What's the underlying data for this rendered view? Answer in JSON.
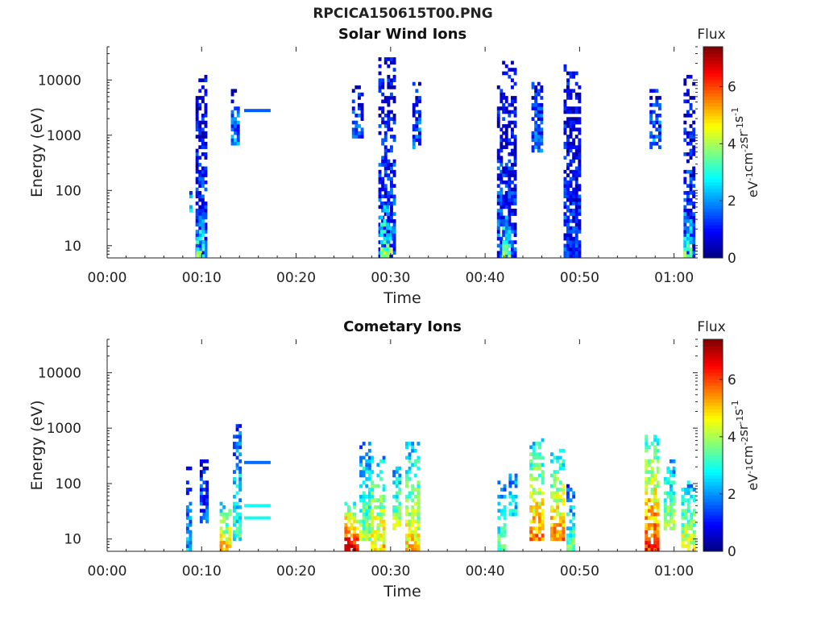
{
  "figure": {
    "title": "RPCICA150615T00.PNG"
  },
  "chart_data": [
    {
      "type": "heatmap",
      "title": "Solar Wind Ions",
      "xlabel": "Time",
      "ylabel": "Energy (eV)",
      "y_scale": "log",
      "ylim": [
        6,
        40000
      ],
      "xlim_minutes": [
        0,
        62.5
      ],
      "x_ticks": [
        "00:00",
        "00:10",
        "00:20",
        "00:30",
        "00:40",
        "00:50",
        "01:00"
      ],
      "y_ticks": [
        "10",
        "100",
        "1000",
        "10000"
      ],
      "colorbar": {
        "title": "Flux",
        "label": "eV^-1 cm^-2 sr^-1 s^-1",
        "range": [
          0,
          7.4
        ],
        "ticks": [
          "0",
          "2",
          "4",
          "6"
        ],
        "colormap": "jet"
      },
      "grid": false,
      "bursts": [
        {
          "t": 8.8,
          "w": 0.2,
          "lo": 40,
          "hi": 100,
          "flux": 3.0
        },
        {
          "t": 10.0,
          "w": 1.3,
          "lo": 6,
          "hi": 13000,
          "flux": 1.2
        },
        {
          "t": 9.9,
          "w": 1.0,
          "lo": 6,
          "hi": 50,
          "flux": 3.2
        },
        {
          "t": 13.5,
          "w": 0.8,
          "lo": 700,
          "hi": 6500,
          "flux": 1.8
        },
        {
          "t": 26.5,
          "w": 1.2,
          "lo": 900,
          "hi": 8000,
          "flux": 1.5
        },
        {
          "t": 29.6,
          "w": 1.8,
          "lo": 6,
          "hi": 25000,
          "flux": 1.3
        },
        {
          "t": 29.5,
          "w": 1.2,
          "lo": 6,
          "hi": 60,
          "flux": 3.5
        },
        {
          "t": 32.8,
          "w": 1.0,
          "lo": 600,
          "hi": 9000,
          "flux": 1.6
        },
        {
          "t": 41.5,
          "w": 0.5,
          "lo": 6,
          "hi": 8000,
          "flux": 1.4
        },
        {
          "t": 42.5,
          "w": 1.4,
          "lo": 6,
          "hi": 25000,
          "flux": 1.1
        },
        {
          "t": 42.3,
          "w": 1.0,
          "lo": 6,
          "hi": 40,
          "flux": 3.4
        },
        {
          "t": 45.5,
          "w": 1.2,
          "lo": 500,
          "hi": 9000,
          "flux": 1.6
        },
        {
          "t": 48.6,
          "w": 0.6,
          "lo": 6,
          "hi": 20000,
          "flux": 1.3
        },
        {
          "t": 49.3,
          "w": 1.4,
          "lo": 6,
          "hi": 15000,
          "flux": 1.0
        },
        {
          "t": 58.0,
          "w": 1.2,
          "lo": 600,
          "hi": 7000,
          "flux": 1.7
        },
        {
          "t": 61.6,
          "w": 1.2,
          "lo": 6,
          "hi": 12000,
          "flux": 1.2
        },
        {
          "t": 61.4,
          "w": 0.8,
          "lo": 6,
          "hi": 40,
          "flux": 3.2
        }
      ],
      "lines": [
        {
          "t0": 14.5,
          "t1": 17.3,
          "e": 2800,
          "flux": 1.6
        }
      ]
    },
    {
      "type": "heatmap",
      "title": "Cometary Ions",
      "xlabel": "Time",
      "ylabel": "Energy (eV)",
      "y_scale": "log",
      "ylim": [
        6,
        40000
      ],
      "xlim_minutes": [
        0,
        62.5
      ],
      "x_ticks": [
        "00:00",
        "00:10",
        "00:20",
        "00:30",
        "00:40",
        "00:50",
        "01:00"
      ],
      "y_ticks": [
        "10",
        "100",
        "1000",
        "10000"
      ],
      "colorbar": {
        "title": "Flux",
        "label": "eV^-1 cm^-2 sr^-1 s^-1",
        "range": [
          0,
          7.4
        ],
        "ticks": [
          "0",
          "2",
          "4",
          "6"
        ],
        "colormap": "jet"
      },
      "grid": false,
      "bursts": [
        {
          "t": 8.6,
          "w": 0.5,
          "lo": 6,
          "hi": 250,
          "flux": 2.0
        },
        {
          "t": 10.2,
          "w": 0.8,
          "lo": 20,
          "hi": 300,
          "flux": 1.5
        },
        {
          "t": 12.5,
          "w": 1.2,
          "lo": 6,
          "hi": 45,
          "flux": 4.8
        },
        {
          "t": 13.8,
          "w": 1.0,
          "lo": 10,
          "hi": 1300,
          "flux": 2.8
        },
        {
          "t": 25.8,
          "w": 1.4,
          "lo": 6,
          "hi": 45,
          "flux": 6.5
        },
        {
          "t": 27.3,
          "w": 1.2,
          "lo": 10,
          "hi": 600,
          "flux": 3.5
        },
        {
          "t": 28.6,
          "w": 1.4,
          "lo": 6,
          "hi": 300,
          "flux": 4.6
        },
        {
          "t": 30.7,
          "w": 1.0,
          "lo": 15,
          "hi": 200,
          "flux": 4.0
        },
        {
          "t": 32.3,
          "w": 1.5,
          "lo": 6,
          "hi": 650,
          "flux": 4.5
        },
        {
          "t": 41.8,
          "w": 1.0,
          "lo": 6,
          "hi": 120,
          "flux": 3.2
        },
        {
          "t": 43.0,
          "w": 1.0,
          "lo": 25,
          "hi": 200,
          "flux": 2.6
        },
        {
          "t": 45.4,
          "w": 1.4,
          "lo": 10,
          "hi": 700,
          "flux": 5.0
        },
        {
          "t": 47.6,
          "w": 1.4,
          "lo": 10,
          "hi": 450,
          "flux": 5.0
        },
        {
          "t": 49.0,
          "w": 0.8,
          "lo": 6,
          "hi": 100,
          "flux": 3.2
        },
        {
          "t": 57.7,
          "w": 1.6,
          "lo": 6,
          "hi": 800,
          "flux": 5.6
        },
        {
          "t": 59.5,
          "w": 1.2,
          "lo": 15,
          "hi": 300,
          "flux": 3.8
        },
        {
          "t": 61.5,
          "w": 1.5,
          "lo": 6,
          "hi": 120,
          "flux": 4.2
        }
      ],
      "lines": [
        {
          "t0": 14.5,
          "t1": 17.3,
          "e": 240,
          "flux": 1.7
        },
        {
          "t0": 14.5,
          "t1": 17.3,
          "e": 40,
          "flux": 2.9
        },
        {
          "t0": 14.5,
          "t1": 17.3,
          "e": 24,
          "flux": 2.9
        }
      ]
    }
  ]
}
